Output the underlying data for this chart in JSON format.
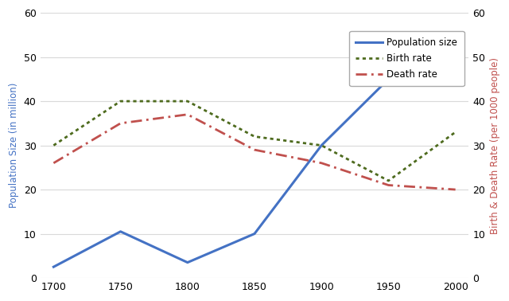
{
  "years": [
    1700,
    1750,
    1800,
    1850,
    1900,
    1950,
    2000
  ],
  "population": [
    2.5,
    10.5,
    3.5,
    10,
    30,
    45,
    50
  ],
  "birth_rate": [
    30,
    40,
    40,
    32,
    30,
    22,
    33
  ],
  "death_rate": [
    26,
    35,
    37,
    29,
    26,
    21,
    20
  ],
  "pop_color": "#4472C4",
  "birth_color": "#4E6B1E",
  "death_color": "#C0504D",
  "ylabel_left": "Population Size (in million)",
  "ylabel_right": "Birth & Death Rate (per 1000 people)",
  "ylim_left": [
    0,
    60
  ],
  "ylim_right": [
    0,
    60
  ],
  "yticks": [
    0,
    10,
    20,
    30,
    40,
    50,
    60
  ],
  "background_color": "#FFFFFF",
  "plot_bg_color": "#FFFFFF",
  "grid_color": "#D9D9D9",
  "legend_labels": [
    "Population size",
    "Birth rate",
    "Death rate"
  ],
  "xlim": [
    1690,
    2010
  ]
}
